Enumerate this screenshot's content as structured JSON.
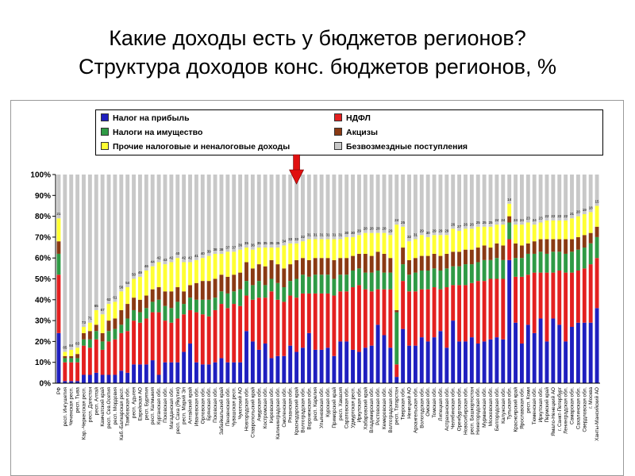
{
  "slide": {
    "title_line1": "Какие доходы есть у бюджетов регионов?",
    "title_line2": "Структура доходов конс. бюджетов регионов, %"
  },
  "chart_data": {
    "type": "bar",
    "stacked": true,
    "percent_axis": true,
    "ylim": [
      0,
      100
    ],
    "yticks": [
      "0%",
      "10%",
      "20%",
      "30%",
      "40%",
      "50%",
      "60%",
      "70%",
      "80%",
      "90%",
      "100%"
    ],
    "grid": false,
    "legend_position": "top",
    "legend": [
      {
        "name": "Налог на прибыль",
        "color": "#1f1fbf"
      },
      {
        "name": "НДФЛ",
        "color": "#e32020"
      },
      {
        "name": "Налоги на имущество",
        "color": "#2f9a45"
      },
      {
        "name": "Акцизы",
        "color": "#8a3a14"
      },
      {
        "name": "Прочие налоговые и неналоговые доходы",
        "color": "#ffff33"
      },
      {
        "name": "Безвозмездные поступления",
        "color": "#c8c8c8"
      }
    ],
    "categories": [
      "РФ",
      "респ. Ингушетия",
      "Чеченская респ.",
      "респ. Тыва",
      "Кар.-Черкесская респ.",
      "респ. Дагестан",
      "респ. Алтай",
      "Камчатский край",
      "респ. Сев.Осетия",
      "респ. Мордовия",
      "Каб.-Балкарская респ.",
      "Тамбовская обл.",
      "респ. Адыгея",
      "Еврейская АО",
      "респ. Бурятия",
      "респ. Калмыкия",
      "Курганская обл.",
      "Псковская обл.",
      "Магаданская обл.",
      "респ. Саха (Якутия)",
      "респ. Марий Эл",
      "Алтайский край",
      "Ивановская обл.",
      "Орловская обл.",
      "Брянская обл.",
      "Псковская обл.",
      "Забайкальский край",
      "Пензенская обл.",
      "Чувашская респ.",
      "Чукотский АО",
      "Новгородская обл.",
      "Ставропольский край",
      "Амурская обл.",
      "Костромская обл.",
      "Кировская обл.",
      "Калининградская обл.",
      "Смоленская обл.",
      "Рязанская обл.",
      "Краснодарский край",
      "Волгоградская обл.",
      "Воронежская обл.",
      "респ. Карелия",
      "Ульяновская обл.",
      "Курская обл.",
      "Приморский край",
      "респ. Хакасия",
      "Саратовская обл.",
      "Удмуртская респ.",
      "Иркутская обл.",
      "Хабаровский край",
      "Владимирская обл.",
      "Ростовская обл.",
      "Кемеровская обл.",
      "Волгоградская обл.",
      "респ. Татарстан",
      "Тверская обл.",
      "Ненецкий АО",
      "Архангельская обл.",
      "Вологодская обл.",
      "Омская обл.",
      "Томская обл.",
      "Липецкая обл.",
      "Астраханская обл.",
      "Челябинская обл.",
      "Оренбургская обл.",
      "Новосибирская обл.",
      "респ. Башкортостан",
      "Нижегородская обл.",
      "Мурманская обл.",
      "Московская обл.",
      "Белгородская обл.",
      "Калужская обл.",
      "Тульская обл.",
      "Красноярский край",
      "Ярославская обл.",
      "респ. Коми",
      "Тюменская обл.",
      "Иркутская обл.",
      "Пермский край",
      "Ямало-Ненецкий АО",
      "г. Санкт-Петербург",
      "Ленинградская обл.",
      "Самарская обл.",
      "Сахалинская обл.",
      "Свердловская обл.",
      "г. Москва",
      "Ханты-Мансийский АО"
    ],
    "series": [
      {
        "name": "Налог на прибыль",
        "values": [
          24,
          1,
          1,
          1,
          4,
          4,
          5,
          4,
          4,
          4,
          6,
          5,
          9,
          9,
          9,
          11,
          4,
          10,
          10,
          10,
          15,
          19,
          10,
          9,
          9,
          10,
          12,
          10,
          10,
          10,
          25,
          20,
          16,
          19,
          12,
          13,
          13,
          18,
          15,
          17,
          24,
          16,
          16,
          17,
          13,
          20,
          20,
          16,
          15,
          17,
          18,
          28,
          23,
          17,
          3,
          26,
          18,
          18,
          22,
          20,
          22,
          25,
          17,
          30,
          20,
          20,
          22,
          19,
          20,
          21,
          22,
          21,
          59,
          29,
          19,
          28,
          24,
          31,
          20,
          31,
          28,
          20,
          27,
          29,
          29,
          29,
          36
        ]
      },
      {
        "name": "НДФЛ",
        "values": [
          28,
          9,
          9,
          9,
          14,
          13,
          16,
          12,
          16,
          17,
          18,
          20,
          21,
          20,
          22,
          23,
          30,
          20,
          19,
          21,
          18,
          16,
          24,
          24,
          23,
          25,
          26,
          26,
          28,
          27,
          17,
          20,
          25,
          22,
          32,
          27,
          26,
          24,
          26,
          26,
          19,
          27,
          27,
          26,
          29,
          24,
          24,
          30,
          32,
          28,
          26,
          17,
          22,
          28,
          6,
          23,
          26,
          26,
          23,
          25,
          24,
          20,
          29,
          17,
          27,
          27,
          26,
          30,
          29,
          29,
          28,
          29,
          10,
          22,
          32,
          24,
          29,
          22,
          33,
          22,
          26,
          33,
          26,
          25,
          26,
          28,
          24
        ]
      },
      {
        "name": "Налоги на имущество",
        "values": [
          10,
          2,
          2,
          2,
          3,
          4,
          4,
          4,
          5,
          5,
          4,
          6,
          5,
          5,
          5,
          5,
          6,
          7,
          7,
          8,
          5,
          6,
          6,
          7,
          8,
          6,
          6,
          7,
          6,
          8,
          7,
          7,
          8,
          6,
          6,
          8,
          7,
          7,
          9,
          9,
          8,
          9,
          9,
          9,
          8,
          8,
          8,
          8,
          8,
          8,
          9,
          9,
          8,
          8,
          25,
          8,
          8,
          9,
          9,
          9,
          9,
          9,
          9,
          9,
          9,
          10,
          9,
          9,
          10,
          9,
          10,
          9,
          8,
          9,
          9,
          10,
          9,
          10,
          9,
          10,
          9,
          9,
          10,
          10,
          10,
          10,
          10
        ]
      },
      {
        "name": "Акцизы",
        "values": [
          6,
          1,
          1,
          2,
          3,
          4,
          3,
          4,
          5,
          5,
          7,
          7,
          6,
          6,
          6,
          6,
          6,
          7,
          8,
          7,
          6,
          6,
          8,
          9,
          9,
          9,
          8,
          8,
          8,
          8,
          9,
          8,
          8,
          9,
          9,
          9,
          9,
          8,
          9,
          8,
          8,
          8,
          8,
          8,
          9,
          8,
          8,
          7,
          7,
          9,
          8,
          9,
          9,
          7,
          1,
          8,
          7,
          7,
          7,
          7,
          7,
          7,
          7,
          7,
          7,
          7,
          7,
          7,
          7,
          6,
          7,
          7,
          3,
          7,
          6,
          5,
          6,
          6,
          7,
          6,
          6,
          7,
          6,
          6,
          6,
          5,
          5
        ]
      },
      {
        "name": "Прочие налоговые и неналоговые доходы",
        "values": [
          11,
          2,
          3,
          3,
          3,
          4,
          7,
          9,
          8,
          8,
          9,
          8,
          9,
          11,
          12,
          11,
          12,
          13,
          14,
          14,
          14,
          11,
          11,
          11,
          12,
          12,
          10,
          12,
          11,
          11,
          7,
          9,
          8,
          9,
          6,
          8,
          11,
          10,
          8,
          8,
          10,
          9,
          9,
          9,
          10,
          9,
          10,
          9,
          9,
          10,
          11,
          9,
          10,
          11,
          41,
          10,
          9,
          9,
          10,
          9,
          9,
          10,
          9,
          11,
          10,
          10,
          10,
          10,
          9,
          10,
          9,
          10,
          6,
          9,
          10,
          10,
          8,
          8,
          9,
          9,
          9,
          9,
          10,
          10,
          10,
          10,
          10
        ]
      },
      {
        "name": "Безвозмездные поступления",
        "values": [
          21,
          85,
          84,
          83,
          73,
          71,
          65,
          67,
          62,
          61,
          56,
          54,
          50,
          49,
          46,
          44,
          42,
          43,
          42,
          40,
          42,
          42,
          41,
          40,
          39,
          38,
          38,
          37,
          37,
          36,
          35,
          36,
          35,
          35,
          35,
          35,
          34,
          33,
          33,
          32,
          31,
          31,
          31,
          31,
          31,
          31,
          30,
          30,
          29,
          28,
          28,
          28,
          28,
          29,
          24,
          25,
          32,
          31,
          29,
          30,
          29,
          29,
          29,
          26,
          27,
          26,
          26,
          25,
          25,
          25,
          24,
          24,
          14,
          24,
          24,
          23,
          24,
          23,
          22,
          22,
          22,
          22,
          21,
          20,
          19,
          18,
          15
        ]
      }
    ],
    "value_labels": [
      "21",
      "85",
      "84",
      "83",
      "73",
      "71",
      "65",
      "67",
      "62",
      "61",
      "56",
      "54",
      "50",
      "49",
      "46",
      "44",
      "42",
      "43",
      "42",
      "40",
      "42",
      "42",
      "41",
      "40",
      "39",
      "38",
      "38",
      "37",
      "37",
      "36",
      "35",
      "36",
      "35",
      "35",
      "35",
      "35",
      "34",
      "33",
      "33",
      "32",
      "31",
      "31",
      "31",
      "31",
      "31",
      "31",
      "30",
      "30",
      "29",
      "28",
      "28",
      "28",
      "28",
      "29",
      "24",
      "25",
      "32",
      "31",
      "29",
      "30",
      "29",
      "29",
      "29",
      "26",
      "27",
      "26",
      "26",
      "25",
      "25",
      "25",
      "24",
      "24",
      "14",
      "24",
      "24",
      "23",
      "24",
      "23",
      "22",
      "22",
      "22",
      "22",
      "21",
      "20",
      "19",
      "18",
      "15"
    ],
    "marker": {
      "type": "arrow",
      "category_index": 38,
      "color": "#e01010"
    }
  }
}
